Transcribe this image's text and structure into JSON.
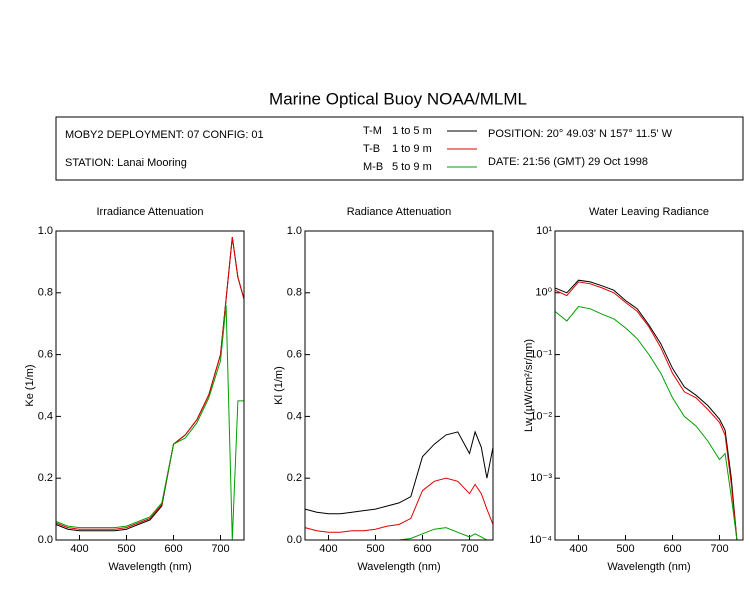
{
  "title": "Marine Optical Buoy NOAA/MLML",
  "header": {
    "deployment": "MOBY2 DEPLOYMENT: 07 CONFIG: 01",
    "station": "STATION: Lanai Mooring",
    "position": "POSITION: 20° 49.03' N   157° 11.5' W",
    "date": "DATE: 21:56 (GMT) 29 Oct 1998",
    "legend_ranges": [
      "1 to 5  m",
      "1 to 9  m",
      "5 to 9  m"
    ]
  },
  "chart_data": [
    {
      "type": "line",
      "title": "Irradiance Attenuation",
      "xlabel": "Wavelength (nm)",
      "ylabel": "Ke  (1/m)",
      "x": [
        350,
        375,
        400,
        425,
        450,
        475,
        500,
        525,
        550,
        575,
        600,
        625,
        650,
        675,
        700,
        712,
        725,
        737,
        750
      ],
      "xlim": [
        350,
        750
      ],
      "xticks": [
        400,
        500,
        600,
        700
      ],
      "ylim": [
        0,
        1
      ],
      "yticks": [
        {
          "value": 0,
          "label": "0.0"
        },
        0.2,
        0.4,
        0.6,
        0.8,
        {
          "value": 1,
          "label": "1.0"
        }
      ],
      "series": [
        {
          "name": "T-M",
          "color": "#000000",
          "values": [
            0.05,
            0.035,
            0.03,
            0.03,
            0.03,
            0.03,
            0.035,
            0.05,
            0.065,
            0.11,
            0.31,
            0.34,
            0.39,
            0.47,
            0.6,
            0.78,
            0.98,
            0.85,
            0.78
          ]
        },
        {
          "name": "T-B",
          "color": "#e00000",
          "values": [
            0.055,
            0.04,
            0.035,
            0.035,
            0.035,
            0.035,
            0.04,
            0.055,
            0.07,
            0.115,
            0.31,
            0.34,
            0.39,
            0.47,
            0.6,
            0.78,
            0.98,
            0.85,
            0.78
          ]
        },
        {
          "name": "M-B",
          "color": "#00a000",
          "values": [
            0.06,
            0.045,
            0.04,
            0.04,
            0.04,
            0.04,
            0.045,
            0.06,
            0.075,
            0.12,
            0.31,
            0.33,
            0.38,
            0.46,
            0.58,
            0.76,
            0,
            0.45,
            0.45
          ]
        }
      ]
    },
    {
      "type": "line",
      "title": "Radiance Attenuation",
      "xlabel": "Wavelength (nm)",
      "ylabel": "Kl  (1/m)",
      "x": [
        350,
        375,
        400,
        425,
        450,
        475,
        500,
        525,
        550,
        575,
        600,
        625,
        650,
        675,
        700,
        712,
        725,
        737,
        750
      ],
      "xlim": [
        350,
        750
      ],
      "xticks": [
        400,
        500,
        600,
        700
      ],
      "ylim": [
        0,
        1
      ],
      "yticks": [
        {
          "value": 0,
          "label": "0.0"
        },
        0.2,
        0.4,
        0.6,
        0.8,
        {
          "value": 1,
          "label": "1.0"
        }
      ],
      "series": [
        {
          "name": "T-M",
          "color": "#000000",
          "values": [
            0.1,
            0.09,
            0.085,
            0.085,
            0.09,
            0.095,
            0.1,
            0.11,
            0.12,
            0.14,
            0.27,
            0.31,
            0.34,
            0.35,
            0.28,
            0.35,
            0.3,
            0.2,
            0.3
          ]
        },
        {
          "name": "T-B",
          "color": "#e00000",
          "values": [
            0.04,
            0.03,
            0.025,
            0.025,
            0.03,
            0.03,
            0.035,
            0.045,
            0.05,
            0.07,
            0.16,
            0.19,
            0.2,
            0.19,
            0.15,
            0.18,
            0.15,
            0.1,
            0.05
          ]
        },
        {
          "name": "M-B",
          "color": "#00a000",
          "values": [
            0,
            0,
            0,
            0,
            0,
            0,
            0,
            0,
            0,
            0.005,
            0.02,
            0.035,
            0.04,
            0.025,
            0.01,
            0.02,
            0.01,
            0,
            0
          ]
        }
      ]
    },
    {
      "type": "line",
      "title": "Water Leaving Radiance",
      "xlabel": "Wavelength (nm)",
      "ylabel": "Lw  (µW/cm²/sr/nm)",
      "x": [
        350,
        375,
        400,
        425,
        450,
        475,
        500,
        525,
        550,
        575,
        600,
        625,
        650,
        675,
        700,
        712,
        725,
        737,
        750
      ],
      "xlim": [
        350,
        750
      ],
      "xticks": [
        400,
        500,
        600,
        700
      ],
      "ylim": [
        0.0001,
        10
      ],
      "log_y": true,
      "yticks": [
        {
          "value": 0.0001,
          "label": "10⁻⁴"
        },
        {
          "value": 0.001,
          "label": "10⁻³"
        },
        {
          "value": 0.01,
          "label": "10⁻²"
        },
        {
          "value": 0.1,
          "label": "10⁻¹"
        },
        {
          "value": 1,
          "label": "10⁰"
        },
        {
          "value": 10,
          "label": "10¹"
        }
      ],
      "series": [
        {
          "name": "T-M",
          "color": "#000000",
          "values": [
            1.2,
            1.0,
            1.6,
            1.5,
            1.3,
            1.1,
            0.75,
            0.55,
            0.3,
            0.15,
            0.06,
            0.03,
            0.022,
            0.015,
            0.009,
            0.006,
            0.001,
            0.0001,
            0.0001
          ]
        },
        {
          "name": "T-B",
          "color": "#e00000",
          "values": [
            1.1,
            0.9,
            1.5,
            1.4,
            1.2,
            1.0,
            0.7,
            0.5,
            0.28,
            0.13,
            0.05,
            0.025,
            0.02,
            0.013,
            0.008,
            0.005,
            0.0008,
            0.0001,
            0.0001
          ]
        },
        {
          "name": "M-B",
          "color": "#00a000",
          "values": [
            0.5,
            0.35,
            0.6,
            0.55,
            0.45,
            0.38,
            0.27,
            0.18,
            0.1,
            0.05,
            0.02,
            0.01,
            0.007,
            0.004,
            0.002,
            0.0025,
            0.0005,
            0.0001,
            0.0001
          ]
        }
      ]
    }
  ]
}
